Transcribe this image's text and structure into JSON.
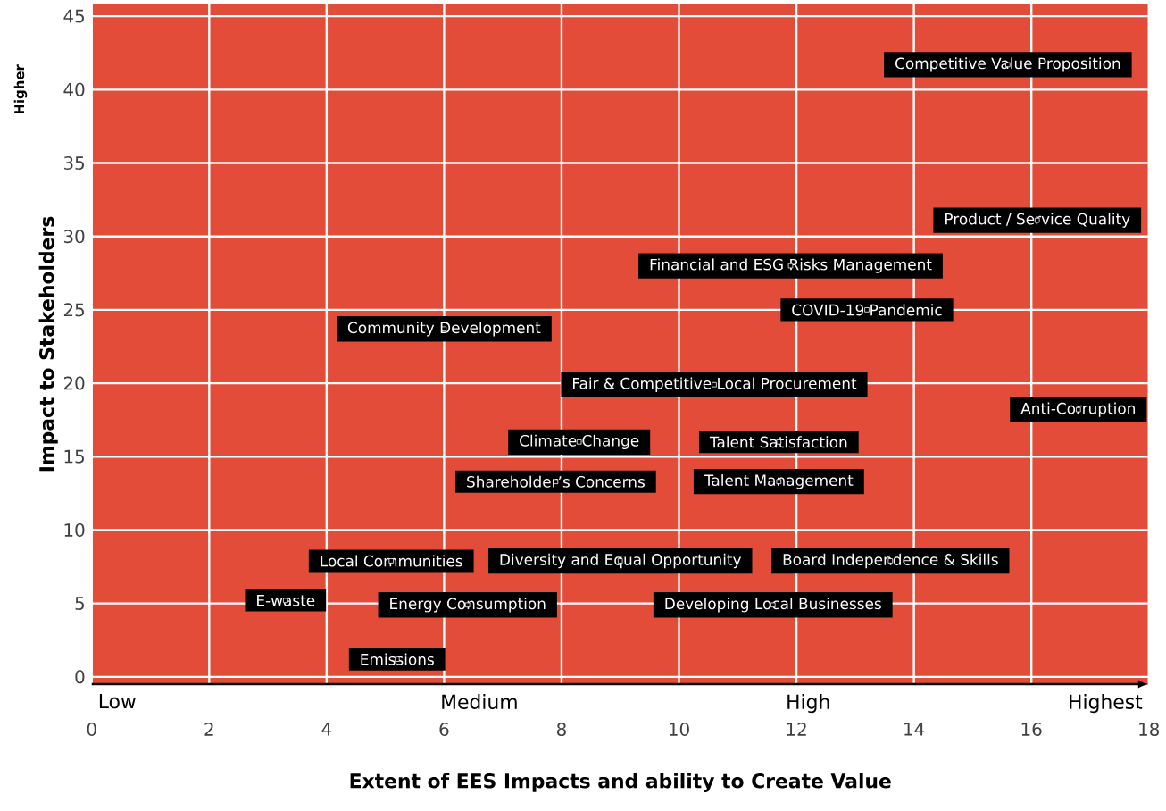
{
  "chart_data": {
    "type": "scatter",
    "xlabel": "Extent of EES Impacts and ability to Create Value",
    "ylabel": "Impact to Stakeholders",
    "xlim": [
      0,
      18
    ],
    "ylim": [
      -0.5,
      45.8
    ],
    "xticks": [
      0,
      2,
      4,
      6,
      8,
      10,
      12,
      14,
      16,
      18
    ],
    "yticks": [
      0,
      5,
      10,
      15,
      20,
      25,
      30,
      35,
      40,
      45
    ],
    "grid": true,
    "annotations": [
      "Low",
      "Medium",
      "High",
      "Highest",
      "Higher"
    ],
    "series": [
      {
        "name": "Competitive Value Proposition",
        "color": "#000000",
        "x": [
          15.6
        ],
        "values": [
          41.7
        ]
      },
      {
        "name": "Product / Service Quality",
        "color": "#000000",
        "x": [
          16.1
        ],
        "values": [
          31.1
        ]
      },
      {
        "name": "Financial and ESG Risks Management",
        "color": "#000000",
        "x": [
          11.9
        ],
        "values": [
          28.0
        ]
      },
      {
        "name": "COVID-19 Pandemic",
        "color": "#000000",
        "x": [
          13.2
        ],
        "values": [
          25.0
        ]
      },
      {
        "name": "Community Development",
        "color": "#000000",
        "x": [
          6.0
        ],
        "values": [
          23.7
        ]
      },
      {
        "name": "Fair & Competitive Local Procurement",
        "color": "#000000",
        "x": [
          10.6
        ],
        "values": [
          19.9
        ]
      },
      {
        "name": "Anti-Corruption",
        "color": "#000000",
        "x": [
          16.8
        ],
        "values": [
          18.2
        ]
      },
      {
        "name": "Climate Change",
        "color": "#000000",
        "x": [
          8.3
        ],
        "values": [
          16.0
        ]
      },
      {
        "name": "Talent Satisfaction",
        "color": "#000000",
        "x": [
          11.7
        ],
        "values": [
          16.0
        ]
      },
      {
        "name": "Shareholder’s Concerns",
        "color": "#000000",
        "x": [
          7.9
        ],
        "values": [
          13.3
        ]
      },
      {
        "name": "Talent Management",
        "color": "#000000",
        "x": [
          11.7
        ],
        "values": [
          13.3
        ]
      },
      {
        "name": "Local Communities",
        "color": "#000000",
        "x": [
          5.1
        ],
        "values": [
          7.9
        ]
      },
      {
        "name": "Diversity and Equal Opportunity",
        "color": "#000000",
        "x": [
          9.0
        ],
        "values": [
          7.9
        ]
      },
      {
        "name": "Board Independence & Skills",
        "color": "#000000",
        "x": [
          13.6
        ],
        "values": [
          7.9
        ]
      },
      {
        "name": "E-waste",
        "color": "#000000",
        "x": [
          3.3
        ],
        "values": [
          5.2
        ]
      },
      {
        "name": "Energy Consumption",
        "color": "#000000",
        "x": [
          6.4
        ],
        "values": [
          4.9
        ]
      },
      {
        "name": "Developing Local Businesses",
        "color": "#000000",
        "x": [
          11.6
        ],
        "values": [
          4.9
        ]
      },
      {
        "name": "Emissions",
        "color": "#000000",
        "x": [
          5.2
        ],
        "values": [
          1.2
        ]
      }
    ]
  }
}
